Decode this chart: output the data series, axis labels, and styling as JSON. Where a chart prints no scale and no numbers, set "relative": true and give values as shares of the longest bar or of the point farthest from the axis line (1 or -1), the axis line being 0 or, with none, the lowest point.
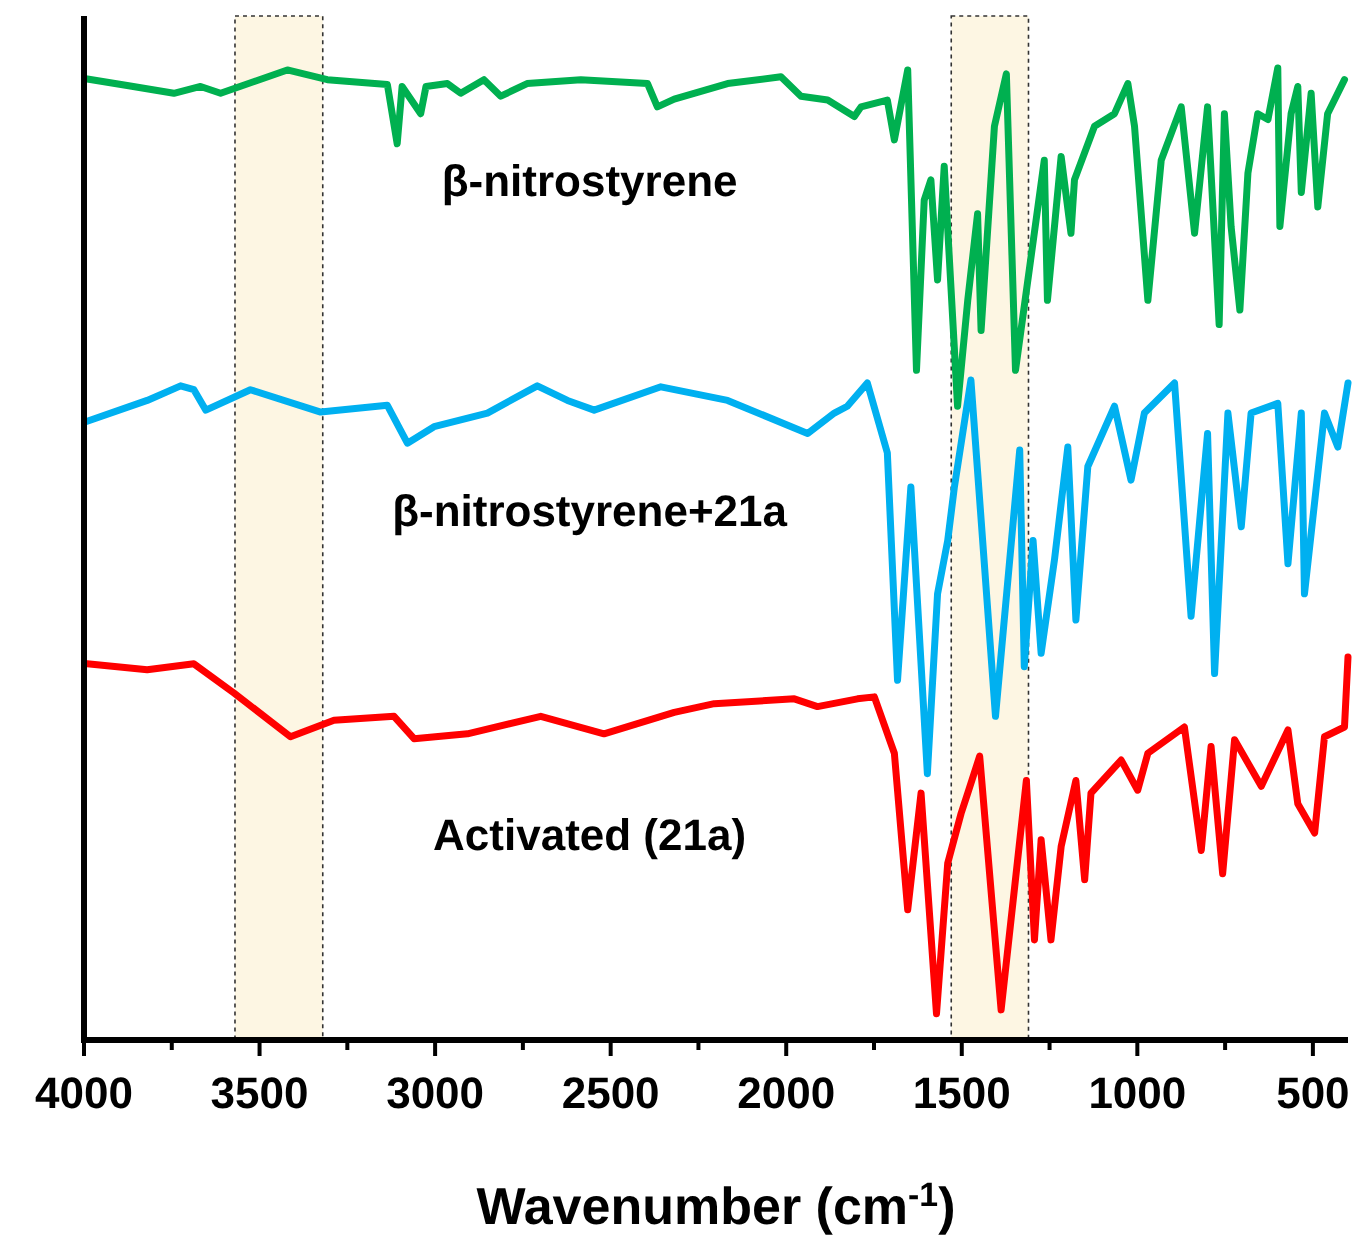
{
  "chart_data": {
    "type": "line",
    "relative": true,
    "xlabel": "Wavenumber (cm$^{-1}$)",
    "legend": false,
    "grid": false,
    "line_style": "solid",
    "marker": "none",
    "xlim": [
      4000,
      400
    ],
    "xticks": [
      4000,
      {
        "value": 3750,
        "label": null
      },
      3500,
      {
        "value": 3250,
        "label": null
      },
      3000,
      {
        "value": 2750,
        "label": null
      },
      2500,
      {
        "value": 2250,
        "label": null
      },
      2000,
      {
        "value": 1750,
        "label": null
      },
      1500,
      {
        "value": 1250,
        "label": null
      },
      1000,
      {
        "value": 750,
        "label": null
      },
      500
    ],
    "bands": [
      {
        "axis": "x",
        "from": 3570,
        "to": 3320,
        "color": "#fdf6e3"
      },
      {
        "axis": "x",
        "from": 1530,
        "to": 1310,
        "color": "#fdf6e3"
      }
    ],
    "series": [
      {
        "name": "β-nitrostyrene",
        "color": "#00b050",
        "x": [
          3995,
          3877,
          3744,
          3668,
          3611,
          3421,
          3307,
          3136,
          3108,
          3094,
          3041,
          3026,
          2965,
          2927,
          2861,
          2813,
          2738,
          2585,
          2395,
          2367,
          2319,
          2167,
          2015,
          1958,
          1882,
          1806,
          1787,
          1712,
          1692,
          1654,
          1629,
          1607,
          1588,
          1569,
          1550,
          1512,
          1483,
          1455,
          1445,
          1407,
          1373,
          1347,
          1265,
          1256,
          1217,
          1189,
          1179,
          1122,
          1065,
          1027,
          1008,
          970,
          932,
          875,
          837,
          800,
          767,
          752,
          733,
          708,
          685,
          657,
          628,
          600,
          594,
          562,
          543,
          533,
          505,
          486,
          458,
          410
        ],
        "values": [
          0.989,
          0.982,
          0.974,
          0.981,
          0.974,
          0.998,
          0.988,
          0.983,
          0.922,
          0.981,
          0.953,
          0.981,
          0.984,
          0.974,
          0.988,
          0.971,
          0.984,
          0.988,
          0.984,
          0.96,
          0.968,
          0.984,
          0.991,
          0.971,
          0.967,
          0.95,
          0.96,
          0.967,
          0.926,
          0.998,
          0.689,
          0.864,
          0.885,
          0.782,
          0.899,
          0.652,
          0.761,
          0.85,
          0.73,
          0.94,
          0.994,
          0.689,
          0.905,
          0.761,
          0.909,
          0.83,
          0.885,
          0.94,
          0.953,
          0.984,
          0.94,
          0.761,
          0.905,
          0.96,
          0.83,
          0.96,
          0.736,
          0.953,
          0.837,
          0.751,
          0.892,
          0.953,
          0.947,
          1,
          0.837,
          0.953,
          0.981,
          0.872,
          0.974,
          0.857,
          0.953,
          0.988
        ]
      },
      {
        "name": "β-nitrostyrene+21a",
        "color": "#00b0f0",
        "x": [
          3995,
          3820,
          3725,
          3687,
          3653,
          3526,
          3326,
          3136,
          3079,
          3003,
          2851,
          2709,
          2623,
          2547,
          2357,
          2167,
          1939,
          1863,
          1826,
          1769,
          1712,
          1683,
          1645,
          1598,
          1569,
          1540,
          1521,
          1474,
          1404,
          1335,
          1322,
          1297,
          1274,
          1236,
          1198,
          1175,
          1141,
          1065,
          1018,
          980,
          894,
          847,
          800,
          780,
          742,
          704,
          676,
          600,
          571,
          533,
          524,
          467,
          429,
          400
        ],
        "values": [
          0.636,
          0.658,
          0.673,
          0.669,
          0.648,
          0.669,
          0.646,
          0.653,
          0.614,
          0.631,
          0.645,
          0.673,
          0.658,
          0.648,
          0.672,
          0.658,
          0.624,
          0.645,
          0.652,
          0.676,
          0.604,
          0.37,
          0.569,
          0.274,
          0.459,
          0.514,
          0.569,
          0.679,
          0.333,
          0.607,
          0.384,
          0.514,
          0.398,
          0.494,
          0.61,
          0.432,
          0.59,
          0.652,
          0.576,
          0.645,
          0.676,
          0.436,
          0.624,
          0.377,
          0.645,
          0.528,
          0.645,
          0.655,
          0.49,
          0.645,
          0.459,
          0.645,
          0.61,
          0.676
        ]
      },
      {
        "name": "Activated (21a)",
        "color": "#ff0000",
        "x": [
          3991,
          3820,
          3687,
          3573,
          3412,
          3288,
          3117,
          3060,
          2908,
          2699,
          2519,
          2319,
          2205,
          1977,
          1911,
          1797,
          1749,
          1692,
          1654,
          1616,
          1572,
          1540,
          1502,
          1483,
          1449,
          1388,
          1316,
          1293,
          1274,
          1246,
          1217,
          1175,
          1150,
          1132,
          1046,
          999,
          970,
          866,
          818,
          790,
          757,
          723,
          647,
          571,
          543,
          495,
          467,
          410,
          400
        ],
        "values": [
          0.387,
          0.381,
          0.387,
          0.357,
          0.312,
          0.329,
          0.333,
          0.31,
          0.315,
          0.333,
          0.315,
          0.337,
          0.346,
          0.351,
          0.343,
          0.351,
          0.353,
          0.295,
          0.134,
          0.254,
          0.027,
          0.182,
          0.233,
          0.254,
          0.292,
          0.031,
          0.267,
          0.103,
          0.206,
          0.103,
          0.199,
          0.267,
          0.165,
          0.254,
          0.288,
          0.257,
          0.295,
          0.322,
          0.195,
          0.302,
          0.171,
          0.309,
          0.261,
          0.319,
          0.243,
          0.213,
          0.312,
          0.322,
          0.394
        ]
      }
    ]
  }
}
